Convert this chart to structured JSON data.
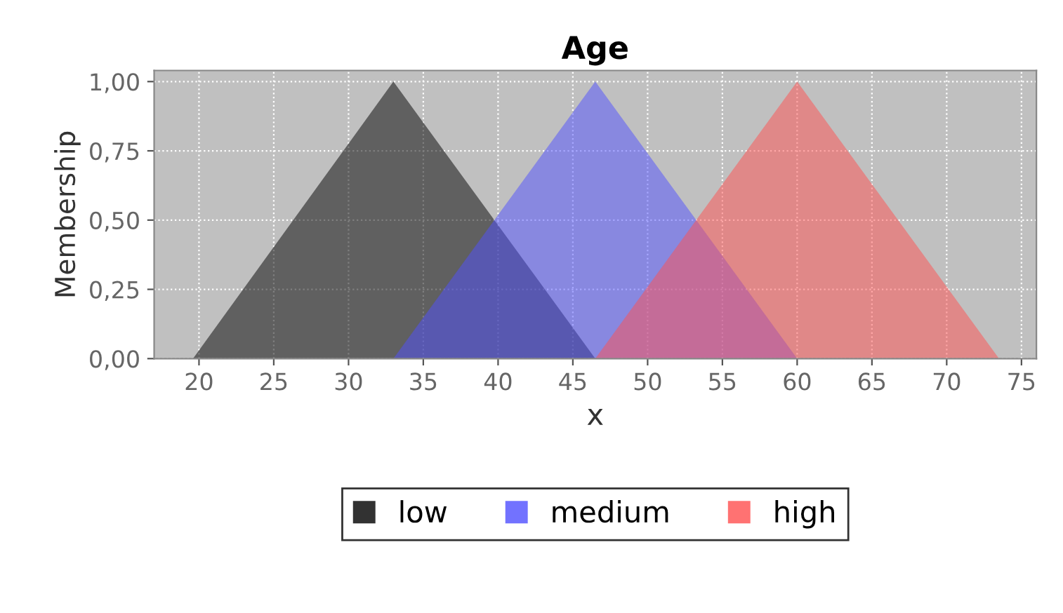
{
  "chart_data": {
    "type": "area",
    "title": "Age",
    "xlabel": "x",
    "ylabel": "Membership",
    "series": [
      {
        "name": "low",
        "color": "#000000",
        "x": [
          19.6,
          33.0,
          46.5
        ],
        "values": [
          0,
          1,
          0
        ]
      },
      {
        "name": "medium",
        "color": "#5050ff",
        "x": [
          33.0,
          46.5,
          60.0
        ],
        "values": [
          0,
          1,
          0
        ]
      },
      {
        "name": "high",
        "color": "#ff5050",
        "x": [
          46.5,
          60.0,
          73.5
        ],
        "values": [
          0,
          1,
          0
        ]
      }
    ],
    "xlim": [
      17,
      76
    ],
    "xticks": [
      20,
      25,
      30,
      35,
      40,
      45,
      50,
      55,
      60,
      65,
      70,
      75
    ],
    "ylim": [
      0,
      1.04
    ],
    "yticks": [
      {
        "value": 0,
        "label": "0,00"
      },
      {
        "value": 0.25,
        "label": "0,25"
      },
      {
        "value": 0.5,
        "label": "0,50"
      },
      {
        "value": 0.75,
        "label": "0,75"
      },
      {
        "value": 1,
        "label": "1,00"
      }
    ],
    "grid": true,
    "legend": "bottom"
  }
}
